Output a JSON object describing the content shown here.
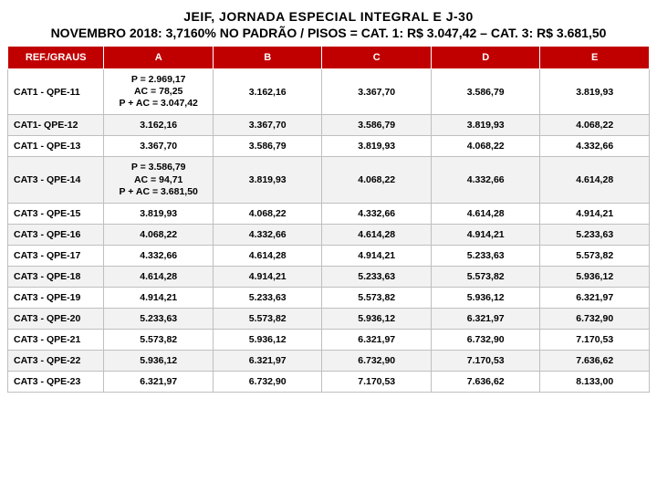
{
  "title_top": "JEIF, JORNADA ESPECIAL INTEGRAL E J-30",
  "title_sub": "NOVEMBRO 2018: 3,7160% NO PADRÃO / PISOS = CAT. 1: R$ 3.047,42 – CAT. 3: R$ 3.681,50",
  "headers": [
    "REF./GRAUS",
    "A",
    "B",
    "C",
    "D",
    "E"
  ],
  "rows": [
    {
      "ref": "CAT1 - QPE-11",
      "cells": [
        "P = 2.969,17\nAC = 78,25\nP + AC = 3.047,42",
        "3.162,16",
        "3.367,70",
        "3.586,79",
        "3.819,93"
      ]
    },
    {
      "ref": "CAT1- QPE-12",
      "cells": [
        "3.162,16",
        "3.367,70",
        "3.586,79",
        "3.819,93",
        "4.068,22"
      ]
    },
    {
      "ref": "CAT1 - QPE-13",
      "cells": [
        "3.367,70",
        "3.586,79",
        "3.819,93",
        "4.068,22",
        "4.332,66"
      ]
    },
    {
      "ref": "CAT3 - QPE-14",
      "cells": [
        "P = 3.586,79\nAC = 94,71\nP + AC = 3.681,50",
        "3.819,93",
        "4.068,22",
        "4.332,66",
        "4.614,28"
      ]
    },
    {
      "ref": "CAT3 - QPE-15",
      "cells": [
        "3.819,93",
        "4.068,22",
        "4.332,66",
        "4.614,28",
        "4.914,21"
      ]
    },
    {
      "ref": "CAT3 - QPE-16",
      "cells": [
        "4.068,22",
        "4.332,66",
        "4.614,28",
        "4.914,21",
        "5.233,63"
      ]
    },
    {
      "ref": "CAT3 - QPE-17",
      "cells": [
        "4.332,66",
        "4.614,28",
        "4.914,21",
        "5.233,63",
        "5.573,82"
      ]
    },
    {
      "ref": "CAT3 - QPE-18",
      "cells": [
        "4.614,28",
        "4.914,21",
        "5.233,63",
        "5.573,82",
        "5.936,12"
      ]
    },
    {
      "ref": "CAT3 - QPE-19",
      "cells": [
        "4.914,21",
        "5.233,63",
        "5.573,82",
        "5.936,12",
        "6.321,97"
      ]
    },
    {
      "ref": "CAT3 - QPE-20",
      "cells": [
        "5.233,63",
        "5.573,82",
        "5.936,12",
        "6.321,97",
        "6.732,90"
      ]
    },
    {
      "ref": "CAT3 - QPE-21",
      "cells": [
        "5.573,82",
        "5.936,12",
        "6.321,97",
        "6.732,90",
        "7.170,53"
      ]
    },
    {
      "ref": "CAT3 - QPE-22",
      "cells": [
        "5.936,12",
        "6.321,97",
        "6.732,90",
        "7.170,53",
        "7.636,62"
      ]
    },
    {
      "ref": "CAT3 - QPE-23",
      "cells": [
        "6.321,97",
        "6.732,90",
        "7.170,53",
        "7.636,62",
        "8.133,00"
      ]
    }
  ],
  "colors": {
    "header_bg": "#c00000",
    "header_fg": "#ffffff",
    "border": "#bfbfbf",
    "alt_row": "#f2f2f2"
  }
}
